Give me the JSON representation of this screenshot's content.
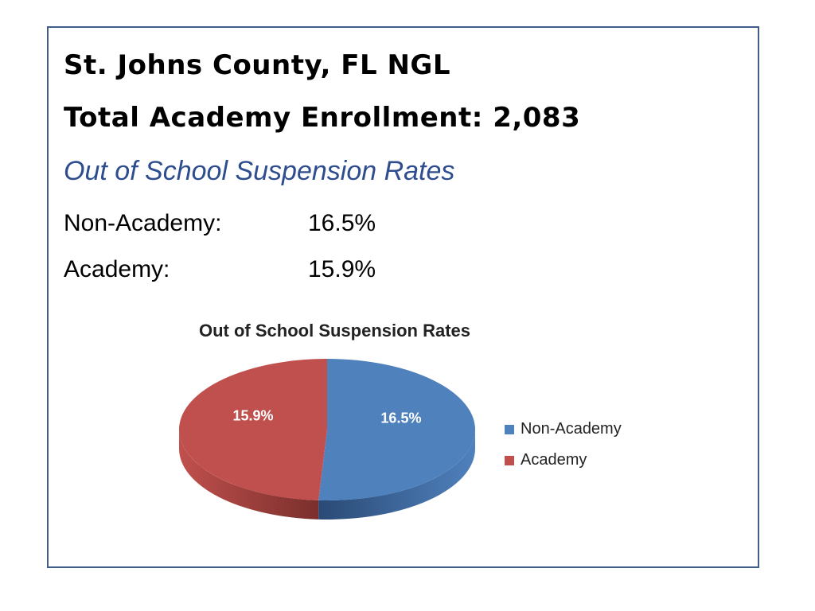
{
  "header": {
    "title_line1": "St. Johns County, FL NGL",
    "title_line2": "Total Academy Enrollment: 2,083",
    "subtitle": "Out of School Suspension Rates"
  },
  "rates": [
    {
      "label": "Non-Academy:",
      "value": "16.5%"
    },
    {
      "label": "Academy:",
      "value": "15.9%"
    }
  ],
  "colors": {
    "non_academy": "#4f81bd",
    "academy": "#c0504d",
    "subtitle": "#2e4d8f",
    "frame": "#3f5f8a"
  },
  "chart_data": {
    "type": "pie",
    "title": "Out of School Suspension Rates",
    "categories": [
      "Non-Academy",
      "Academy"
    ],
    "values": [
      16.5,
      15.9
    ],
    "data_labels": [
      "16.5%",
      "15.9%"
    ],
    "legend": [
      "Non-Academy",
      "Academy"
    ],
    "legend_position": "right",
    "style": "3d"
  }
}
